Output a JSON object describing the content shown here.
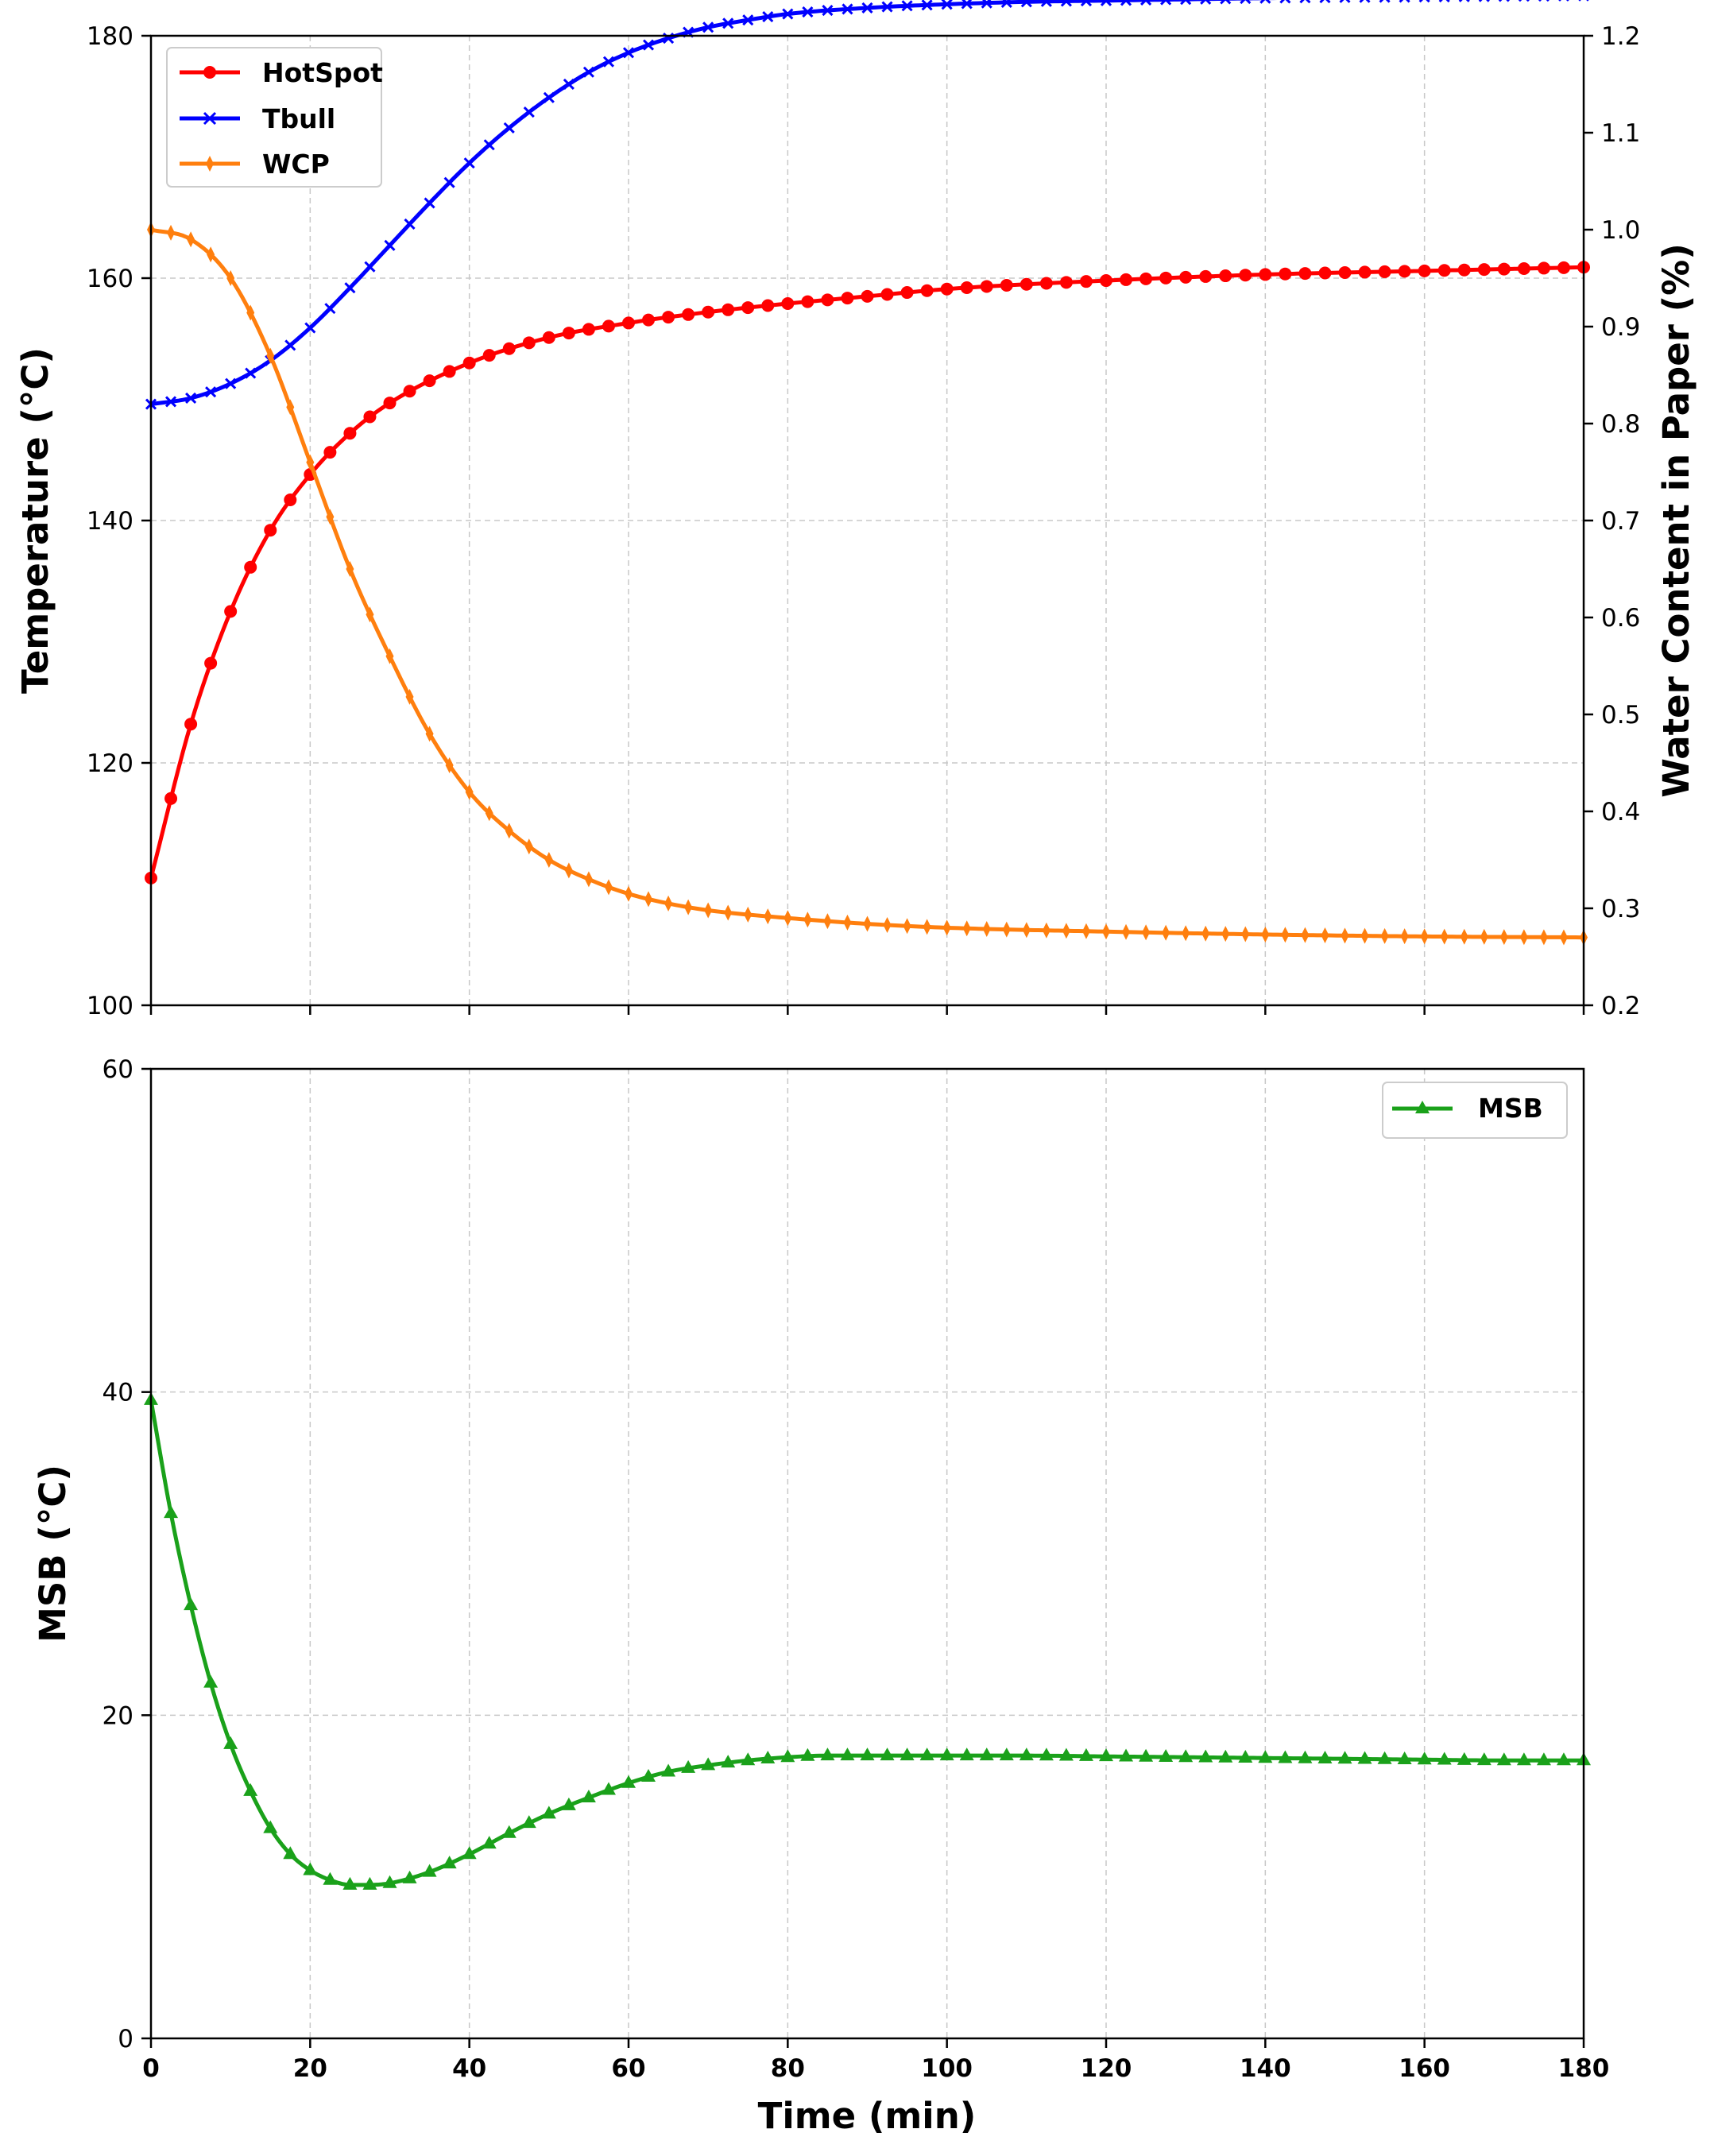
{
  "chart_data": [
    {
      "type": "line",
      "xlim": [
        0,
        180
      ],
      "ylim_left": [
        100,
        180
      ],
      "ylim_right": [
        0.2,
        1.2
      ],
      "xlabel": "",
      "ylabel_left": "Temperature (°C)",
      "ylabel_right": "Water Content in Paper (%)",
      "x_ticks": [
        "0",
        "20",
        "40",
        "60",
        "80",
        "100",
        "120",
        "140",
        "160",
        "180"
      ],
      "y_ticks_left": [
        "100",
        "120",
        "140",
        "160",
        "180"
      ],
      "y_ticks_right": [
        "0.2",
        "0.3",
        "0.4",
        "0.5",
        "0.6",
        "0.7",
        "0.8",
        "0.9",
        "1.0",
        "1.1",
        "1.2"
      ],
      "grid": true,
      "legend_position": "top-left",
      "series": [
        {
          "name": "HotSpot",
          "axis": "left",
          "color": "#ff0000",
          "marker": "circle",
          "x": [
            0,
            5,
            10,
            15,
            20,
            25,
            30,
            40,
            50,
            60,
            70,
            80,
            90,
            100,
            120,
            140,
            160,
            180
          ],
          "y": [
            110.5,
            123.2,
            132.5,
            139.2,
            143.8,
            147.2,
            149.7,
            153.0,
            155.1,
            156.3,
            157.2,
            157.9,
            158.5,
            159.1,
            159.8,
            160.3,
            160.6,
            160.9
          ]
        },
        {
          "name": "Tbull",
          "axis": "left",
          "color": "#0000ff",
          "marker": "x",
          "x": [
            0,
            5,
            10,
            15,
            20,
            25,
            30,
            35,
            40,
            45,
            50,
            55,
            60,
            65,
            70,
            75,
            80,
            90,
            100,
            110,
            120,
            140,
            160,
            180
          ],
          "y": [
            149.6,
            150.1,
            151.3,
            153.2,
            155.9,
            159.2,
            162.7,
            166.2,
            169.5,
            172.4,
            174.9,
            177.0,
            178.6,
            179.8,
            180.7,
            181.3,
            181.8,
            182.3,
            182.6,
            182.8,
            182.9,
            183.1,
            183.2,
            183.3
          ]
        },
        {
          "name": "WCP",
          "axis": "right",
          "color": "#ff7f0e",
          "marker": "thin-diamond",
          "x": [
            0,
            5,
            10,
            15,
            20,
            25,
            30,
            35,
            40,
            45,
            50,
            55,
            60,
            65,
            70,
            80,
            90,
            100,
            120,
            140,
            160,
            180
          ],
          "y": [
            1.0,
            0.99,
            0.95,
            0.87,
            0.76,
            0.65,
            0.56,
            0.48,
            0.42,
            0.38,
            0.35,
            0.33,
            0.315,
            0.305,
            0.298,
            0.29,
            0.284,
            0.28,
            0.276,
            0.273,
            0.271,
            0.27
          ]
        }
      ]
    },
    {
      "type": "line",
      "xlim": [
        0,
        180
      ],
      "ylim": [
        0,
        60
      ],
      "xlabel": "Time (min)",
      "ylabel": "MSB (°C)",
      "x_ticks": [
        "0",
        "20",
        "40",
        "60",
        "80",
        "100",
        "120",
        "140",
        "160",
        "180"
      ],
      "y_ticks": [
        "0",
        "20",
        "40",
        "60"
      ],
      "grid": true,
      "legend_position": "top-right",
      "series": [
        {
          "name": "MSB",
          "color": "#1aa11a",
          "marker": "triangle",
          "x": [
            0,
            2.5,
            5,
            7.5,
            10,
            12.5,
            15,
            17.5,
            20,
            22.5,
            25,
            27.5,
            30,
            35,
            40,
            45,
            50,
            55,
            60,
            65,
            70,
            75,
            80,
            85,
            90,
            100,
            110,
            120,
            130,
            140,
            150,
            160,
            170,
            180
          ],
          "y": [
            39.5,
            32.5,
            26.8,
            22.0,
            18.2,
            15.3,
            13.0,
            11.4,
            10.4,
            9.8,
            9.5,
            9.5,
            9.6,
            10.3,
            11.4,
            12.7,
            13.9,
            14.9,
            15.8,
            16.5,
            16.9,
            17.2,
            17.4,
            17.5,
            17.5,
            17.5,
            17.5,
            17.45,
            17.4,
            17.35,
            17.3,
            17.25,
            17.2,
            17.2
          ]
        }
      ]
    }
  ]
}
